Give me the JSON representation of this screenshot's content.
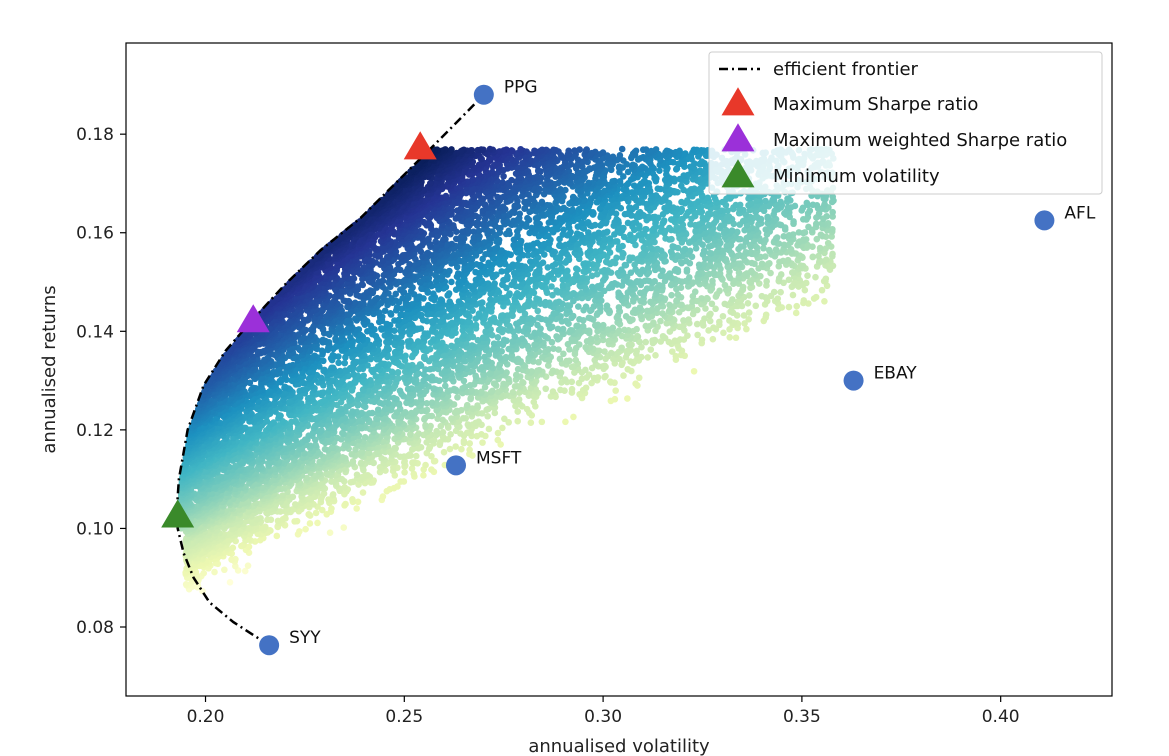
{
  "chart_data": {
    "type": "scatter",
    "xlabel": "annualised volatility",
    "ylabel": "annualised returns",
    "xlim": [
      0.18,
      0.428
    ],
    "ylim": [
      0.066,
      0.1985
    ],
    "xticks": [
      0.2,
      0.25,
      0.3,
      0.35,
      0.4
    ],
    "xtick_labels": [
      "0.20",
      "0.25",
      "0.30",
      "0.35",
      "0.40"
    ],
    "yticks": [
      0.08,
      0.1,
      0.12,
      0.14,
      0.16,
      0.18
    ],
    "ytick_labels": [
      "0.08",
      "0.10",
      "0.12",
      "0.14",
      "0.16",
      "0.18"
    ],
    "grid": false,
    "legend_position": "top-right",
    "colormap": "YlGnBu",
    "colormap_stops": [
      "#ffffd9",
      "#edf8b1",
      "#c7e9b4",
      "#7fcdbb",
      "#41b6c4",
      "#1d91c0",
      "#225ea8",
      "#253494",
      "#081d58"
    ],
    "legend": [
      {
        "label": "efficient frontier",
        "marker": "dashdot-line",
        "color": "#000000"
      },
      {
        "label": "Maximum Sharpe ratio",
        "marker": "triangle",
        "color": "#e8382a"
      },
      {
        "label": "Maximum weighted Sharpe ratio",
        "marker": "triangle",
        "color": "#9b30d9"
      },
      {
        "label": "Minimum volatility",
        "marker": "triangle",
        "color": "#3a8a2a"
      }
    ],
    "stocks": [
      {
        "name": "PPG",
        "x": 0.27,
        "y": 0.188
      },
      {
        "name": "AFL",
        "x": 0.411,
        "y": 0.1625
      },
      {
        "name": "EBAY",
        "x": 0.363,
        "y": 0.13
      },
      {
        "name": "MSFT",
        "x": 0.263,
        "y": 0.1128
      },
      {
        "name": "SYY",
        "x": 0.216,
        "y": 0.0763
      }
    ],
    "stock_color": "#4472c4",
    "efficient_frontier": {
      "x": [
        0.216,
        0.207,
        0.201,
        0.197,
        0.1945,
        0.193,
        0.1928,
        0.1933,
        0.1955,
        0.1995,
        0.205,
        0.212,
        0.22,
        0.229,
        0.239,
        0.249,
        0.259,
        0.27
      ],
      "y": [
        0.0763,
        0.081,
        0.085,
        0.09,
        0.095,
        0.1,
        0.104,
        0.11,
        0.12,
        0.129,
        0.136,
        0.1425,
        0.1495,
        0.1565,
        0.163,
        0.171,
        0.179,
        0.188
      ]
    },
    "optimal_points": [
      {
        "name": "Maximum Sharpe ratio",
        "x": 0.254,
        "y": 0.1772,
        "color": "#e8382a"
      },
      {
        "name": "Maximum weighted Sharpe ratio",
        "x": 0.212,
        "y": 0.1421,
        "color": "#9b30d9"
      },
      {
        "name": "Minimum volatility",
        "x": 0.193,
        "y": 0.1025,
        "color": "#3a8a2a"
      }
    ],
    "random_portfolios": {
      "count": 11000,
      "lower_envelope": {
        "x": [
          0.193,
          0.205,
          0.22,
          0.24,
          0.26,
          0.28,
          0.3,
          0.32,
          0.34,
          0.355
        ],
        "y": [
          0.09,
          0.097,
          0.103,
          0.11,
          0.117,
          0.124,
          0.131,
          0.138,
          0.144,
          0.149
        ]
      },
      "x_extent": [
        0.193,
        0.36
      ],
      "y_extent": [
        0.086,
        0.176
      ],
      "color_metric": "Sharpe ratio (low = light yellow, high = dark blue)"
    }
  }
}
